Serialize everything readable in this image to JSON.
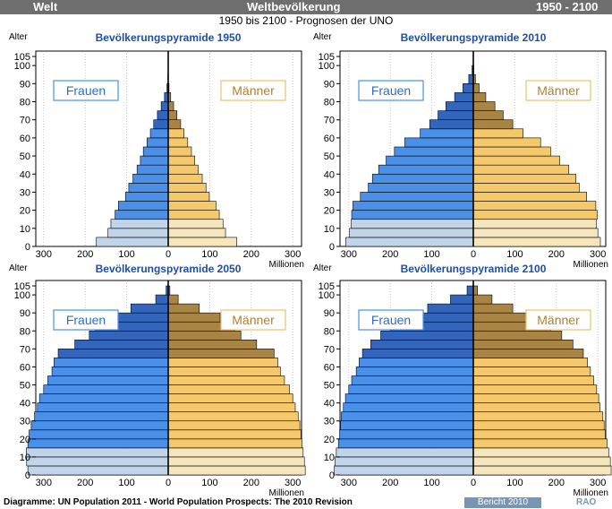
{
  "header": {
    "left": "Welt",
    "center": "Weltbevölkerung",
    "right": "1950 - 2100"
  },
  "subtitle": "1950 bis 2100 - Prognosen der UNO",
  "footer": {
    "source": "Diagramme: UN Population 2011 - World Population Prospects: The 2010 Revision",
    "report": "Bericht 2010",
    "logo": "RAO"
  },
  "colors": {
    "female": "#4a90e8",
    "female_light": "#c0d4ea",
    "female_dark": "#3366bb",
    "male": "#f5c96b",
    "male_light": "#f6e6bb",
    "male_dark": "#a88545",
    "header": "#6e6e6e"
  },
  "chart_data": [
    {
      "type": "bar",
      "title": "Bevölkerungspyramide 1950",
      "ylabel": "Alter",
      "xunit": "Millionen",
      "legend": {
        "female": "Frauen",
        "male": "Männer"
      },
      "yticks": [
        0,
        10,
        20,
        30,
        40,
        50,
        60,
        70,
        80,
        90,
        100,
        105
      ],
      "xticks": [
        "300",
        "200",
        "100",
        "0",
        "100",
        "200",
        "300"
      ],
      "xlim": [
        -320,
        320
      ],
      "age_groups": [
        "0-4",
        "5-9",
        "10-14",
        "15-19",
        "20-24",
        "25-29",
        "30-34",
        "35-39",
        "40-44",
        "45-49",
        "50-54",
        "55-59",
        "60-64",
        "65-69",
        "70-74",
        "75-79",
        "80-84",
        "85-89",
        "90-94",
        "95-99",
        "100+"
      ],
      "female": [
        173,
        145,
        138,
        128,
        120,
        103,
        95,
        85,
        75,
        67,
        60,
        51,
        43,
        35,
        26,
        17,
        9,
        3,
        1,
        0.2,
        0.02
      ],
      "male": [
        165,
        138,
        132,
        123,
        115,
        99,
        91,
        82,
        72,
        64,
        56,
        47,
        38,
        30,
        21,
        13,
        6,
        2,
        0.5,
        0.1,
        0.01
      ]
    },
    {
      "type": "bar",
      "title": "Bevölkerungspyramide 2010",
      "ylabel": "Alter",
      "xunit": "Millionen",
      "legend": {
        "female": "Frauen",
        "male": "Männer"
      },
      "yticks": [
        0,
        10,
        20,
        30,
        40,
        50,
        60,
        70,
        80,
        90,
        100,
        105
      ],
      "xticks": [
        "300",
        "200",
        "100",
        "0",
        "100",
        "200",
        "300"
      ],
      "xlim": [
        -320,
        320
      ],
      "age_groups": [
        "0-4",
        "5-9",
        "10-14",
        "15-19",
        "20-24",
        "25-29",
        "30-34",
        "35-39",
        "40-44",
        "45-49",
        "50-54",
        "55-59",
        "60-64",
        "65-69",
        "70-74",
        "75-79",
        "80-84",
        "85-89",
        "90-94",
        "95-99",
        "100+"
      ],
      "female": [
        307,
        298,
        294,
        293,
        290,
        272,
        253,
        243,
        228,
        210,
        190,
        165,
        128,
        105,
        85,
        66,
        45,
        25,
        11,
        3,
        0.5
      ],
      "male": [
        306,
        300,
        296,
        298,
        295,
        273,
        255,
        247,
        230,
        208,
        186,
        162,
        120,
        95,
        72,
        52,
        30,
        14,
        5,
        1,
        0.1
      ]
    },
    {
      "type": "bar",
      "title": "Bevölkerungspyramide 2050",
      "ylabel": "Alter",
      "xunit": "Millionen",
      "legend": {
        "female": "Frauen",
        "male": "Männer"
      },
      "yticks": [
        0,
        10,
        20,
        30,
        40,
        50,
        60,
        70,
        80,
        90,
        100,
        105
      ],
      "xticks": [
        "300",
        "200",
        "100",
        "0",
        "100",
        "200",
        "300"
      ],
      "xlim": [
        -320,
        320
      ],
      "age_groups": [
        "0-4",
        "5-9",
        "10-14",
        "15-19",
        "20-24",
        "25-29",
        "30-34",
        "35-39",
        "40-44",
        "45-49",
        "50-54",
        "55-59",
        "60-64",
        "65-69",
        "70-74",
        "75-79",
        "80-84",
        "85-89",
        "90-94",
        "95-99",
        "100+"
      ],
      "female": [
        338,
        341,
        342,
        338,
        335,
        330,
        322,
        315,
        310,
        300,
        290,
        280,
        275,
        265,
        225,
        190,
        175,
        140,
        90,
        30,
        5
      ],
      "male": [
        330,
        328,
        325,
        322,
        320,
        317,
        313,
        306,
        300,
        292,
        280,
        270,
        264,
        255,
        213,
        175,
        160,
        125,
        75,
        24,
        4
      ]
    },
    {
      "type": "bar",
      "title": "Bevölkerungspyramide 2100",
      "ylabel": "Alter",
      "xunit": "Millionen",
      "legend": {
        "female": "Frauen",
        "male": "Männer"
      },
      "yticks": [
        0,
        10,
        20,
        30,
        40,
        50,
        60,
        70,
        80,
        90,
        100,
        105
      ],
      "xticks": [
        "300",
        "200",
        "100",
        "0",
        "100",
        "200",
        "300"
      ],
      "xlim": [
        -320,
        320
      ],
      "age_groups": [
        "0-4",
        "5-9",
        "10-14",
        "15-19",
        "20-24",
        "25-29",
        "30-34",
        "35-39",
        "40-44",
        "45-49",
        "50-54",
        "55-59",
        "60-64",
        "65-69",
        "70-74",
        "75-79",
        "80-84",
        "85-89",
        "90-94",
        "95-99",
        "100+"
      ],
      "female": [
        335,
        333,
        330,
        325,
        322,
        320,
        318,
        313,
        308,
        300,
        293,
        282,
        275,
        267,
        247,
        223,
        200,
        165,
        110,
        55,
        15
      ],
      "male": [
        332,
        330,
        326,
        322,
        318,
        315,
        312,
        305,
        302,
        297,
        290,
        282,
        275,
        265,
        240,
        213,
        187,
        150,
        95,
        45,
        10
      ]
    }
  ]
}
